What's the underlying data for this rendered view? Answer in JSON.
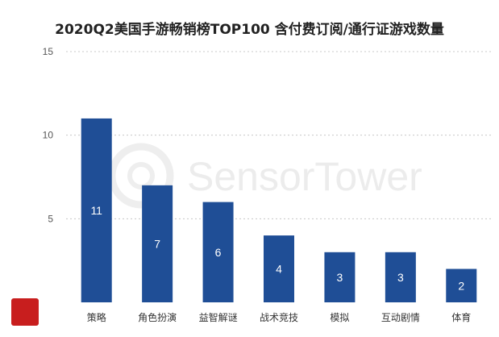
{
  "chart_data": {
    "type": "bar",
    "title": "2020Q2美国手游畅销榜TOP100 含付费订阅/通行证游戏数量",
    "xlabel": "",
    "ylabel": "",
    "categories": [
      "策略",
      "角色扮演",
      "益智解谜",
      "战术竞技",
      "模拟",
      "互动剧情",
      "体育"
    ],
    "values": [
      11,
      7,
      6,
      4,
      3,
      3,
      2
    ],
    "ylim": [
      0,
      15
    ],
    "yticks": [
      5,
      10,
      15
    ],
    "ytick_labels": [
      "5",
      "10",
      "15"
    ],
    "grid": true,
    "bar_color": "#1f4e96",
    "data_labels": true
  },
  "watermark": {
    "text": "SensorTower",
    "logo_color": "#c81e1e"
  }
}
